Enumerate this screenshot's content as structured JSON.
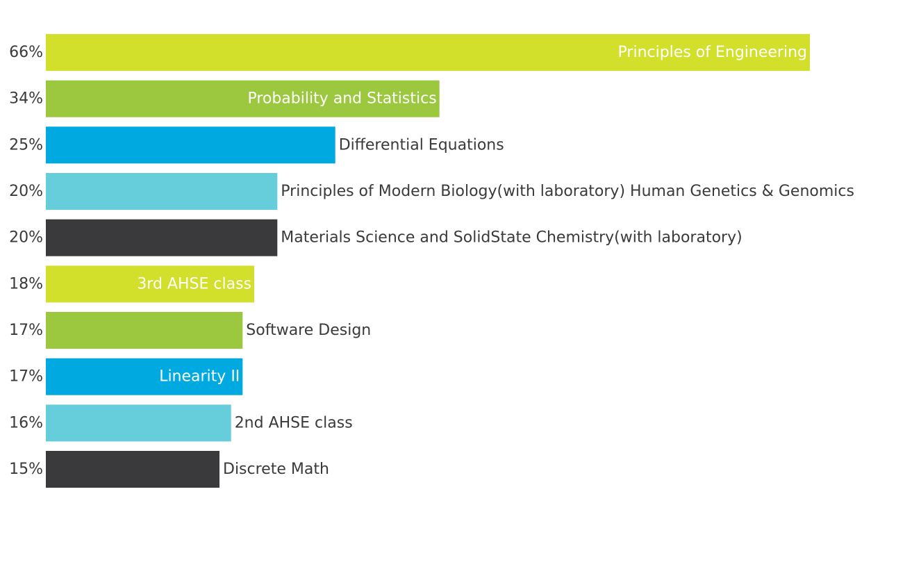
{
  "chart_data": {
    "type": "bar",
    "orientation": "horizontal",
    "categories": [
      "Principles of Engineering",
      "Probability and Statistics",
      "Differential Equations",
      "Principles of Modern Biology(with laboratory) Human Genetics & Genomics",
      "Materials Science and SolidState Chemistry(with laboratory)",
      "3rd AHSE class",
      "Software Design",
      "Linearity II",
      "2nd AHSE class",
      "Discrete Math"
    ],
    "values": [
      66,
      34,
      25,
      20,
      20,
      18,
      17,
      17,
      16,
      15
    ],
    "value_labels": [
      "66%",
      "34%",
      "25%",
      "20%",
      "20%",
      "18%",
      "17%",
      "17%",
      "16%",
      "15%"
    ],
    "label_inside": [
      true,
      true,
      false,
      false,
      false,
      true,
      false,
      true,
      false,
      false
    ],
    "bar_colors": [
      "#d2df2b",
      "#9bc83f",
      "#00a9e0",
      "#66cddb",
      "#3a3a3c",
      "#d2df2b",
      "#9bc83f",
      "#00a9e0",
      "#66cddb",
      "#3a3a3c"
    ],
    "title": "",
    "xlabel": "",
    "ylabel": "",
    "xlim": [
      0,
      66
    ],
    "grid": false,
    "legend": "none"
  },
  "colors": {
    "text_dark": "#3a3a3c",
    "text_light": "#ffffff",
    "background": "#ffffff"
  }
}
